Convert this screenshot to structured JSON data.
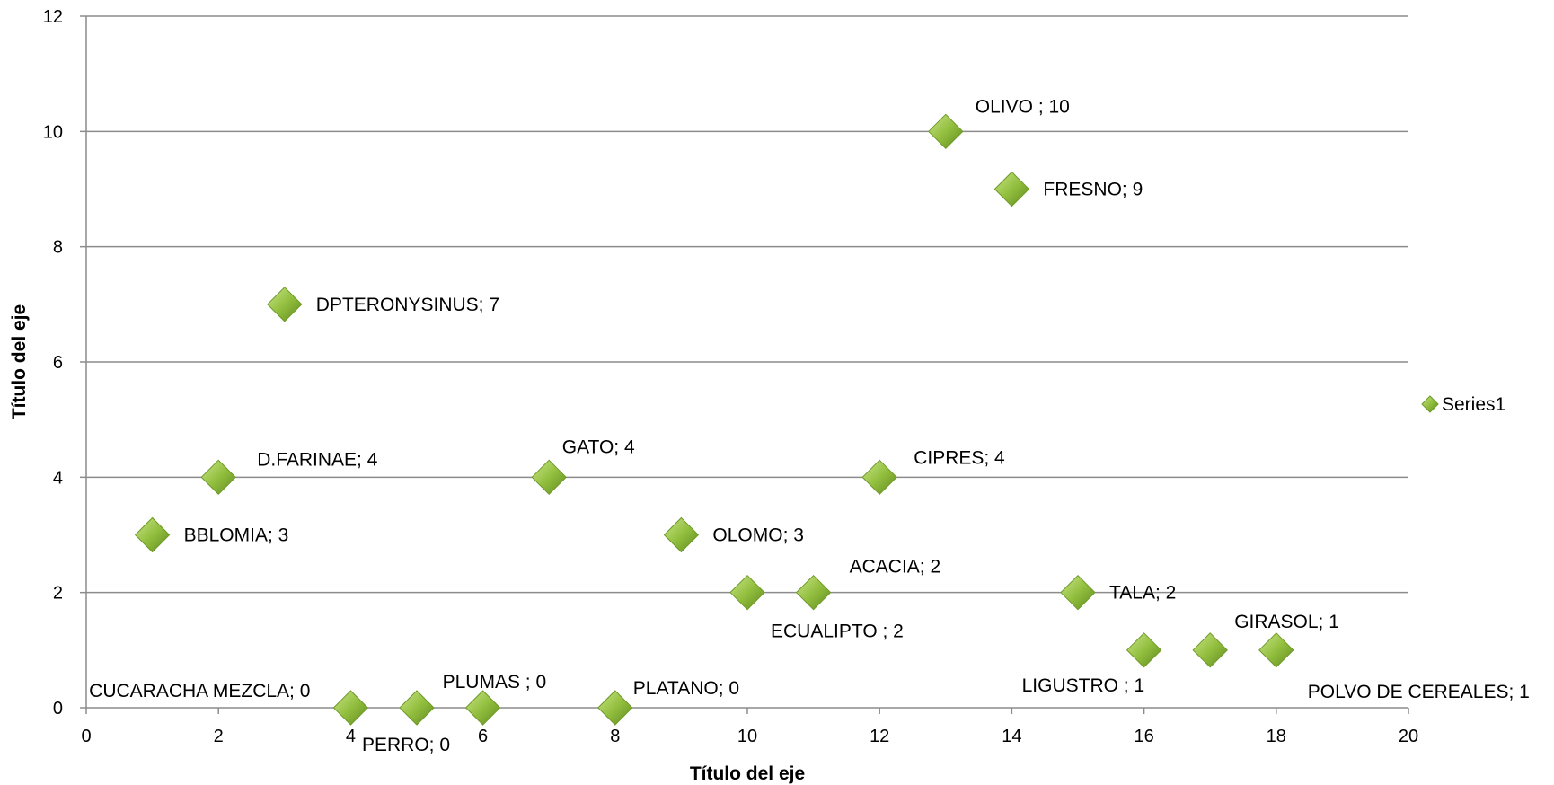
{
  "chart_data": {
    "type": "scatter",
    "xlabel": "Título del eje",
    "ylabel": "Título del eje",
    "xlim": [
      0,
      20
    ],
    "ylim": [
      0,
      12
    ],
    "x_ticks": [
      0,
      2,
      4,
      6,
      8,
      10,
      12,
      14,
      16,
      18,
      20
    ],
    "y_ticks": [
      0,
      2,
      4,
      6,
      8,
      10,
      12
    ],
    "grid": "horizontal",
    "legend": {
      "position": "right",
      "entries": [
        "Series1"
      ]
    },
    "marker_color": "#8ab838",
    "series": [
      {
        "name": "Series1",
        "points": [
          {
            "x": 1,
            "y": 3,
            "label": "BBLOMIA; 3"
          },
          {
            "x": 2,
            "y": 4,
            "label": "D.FARINAE; 4"
          },
          {
            "x": 3,
            "y": 7,
            "label": "DPTERONYSINUS; 7"
          },
          {
            "x": 4,
            "y": 0,
            "label": "CUCARACHA MEZCLA; 0"
          },
          {
            "x": 5,
            "y": 0,
            "label": "PERRO; 0"
          },
          {
            "x": 6,
            "y": 0,
            "label": "PLUMAS ; 0"
          },
          {
            "x": 7,
            "y": 4,
            "label": "GATO; 4"
          },
          {
            "x": 8,
            "y": 0,
            "label": "PLATANO; 0"
          },
          {
            "x": 9,
            "y": 3,
            "label": "OLOMO; 3"
          },
          {
            "x": 10,
            "y": 2,
            "label": "ECUALIPTO ; 2"
          },
          {
            "x": 11,
            "y": 2,
            "label": "ACACIA; 2"
          },
          {
            "x": 12,
            "y": 4,
            "label": "CIPRES; 4"
          },
          {
            "x": 13,
            "y": 10,
            "label": "OLIVO ; 10"
          },
          {
            "x": 14,
            "y": 9,
            "label": "FRESNO; 9"
          },
          {
            "x": 15,
            "y": 2,
            "label": "TALA; 2"
          },
          {
            "x": 16,
            "y": 1,
            "label": "LIGUSTRO ; 1"
          },
          {
            "x": 17,
            "y": 1,
            "label": "GIRASOL; 1"
          },
          {
            "x": 18,
            "y": 1,
            "label": "POLVO DE CEREALES; 1"
          }
        ]
      }
    ]
  }
}
